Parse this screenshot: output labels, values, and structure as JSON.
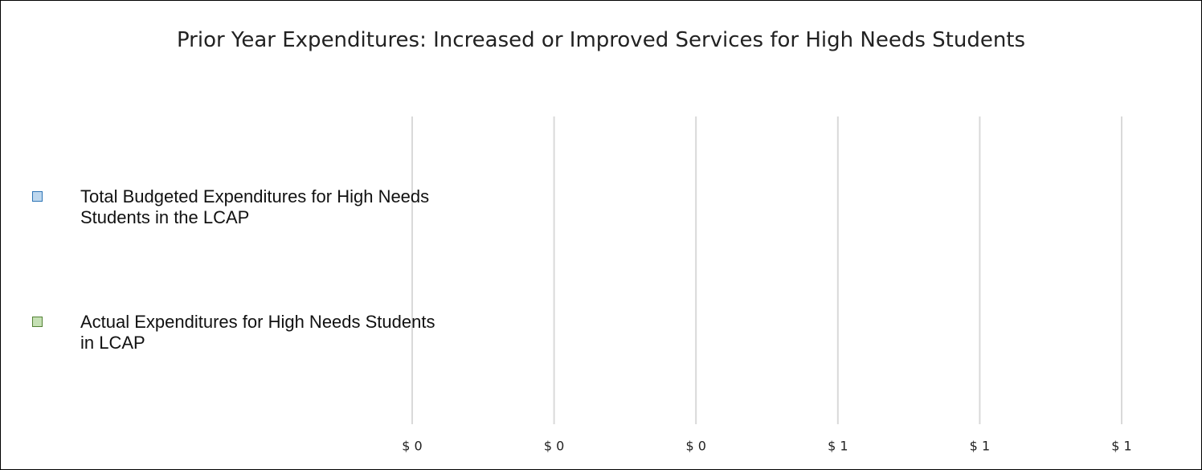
{
  "chart_data": {
    "type": "bar",
    "orientation": "horizontal",
    "title": "Prior Year Expenditures: Increased or Improved Services for High Needs Students",
    "categories": [
      "Total Budgeted Expenditures for High Needs Students in the LCAP",
      "Actual Expenditures for High Needs Students in LCAP"
    ],
    "values": [
      0,
      0
    ],
    "colors": [
      "#bdd7ee",
      "#c5e0b4"
    ],
    "border_colors": [
      "#2e75b6",
      "#548235"
    ],
    "xlim": [
      0,
      1
    ],
    "xticks": [
      {
        "value": 0,
        "label": "$ 0"
      },
      {
        "value": 0.2,
        "label": "$ 0"
      },
      {
        "value": 0.4,
        "label": "$ 0"
      },
      {
        "value": 0.6,
        "label": "$ 1"
      },
      {
        "value": 0.8,
        "label": "$ 1"
      },
      {
        "value": 1,
        "label": "$ 1"
      }
    ],
    "grid": true
  }
}
